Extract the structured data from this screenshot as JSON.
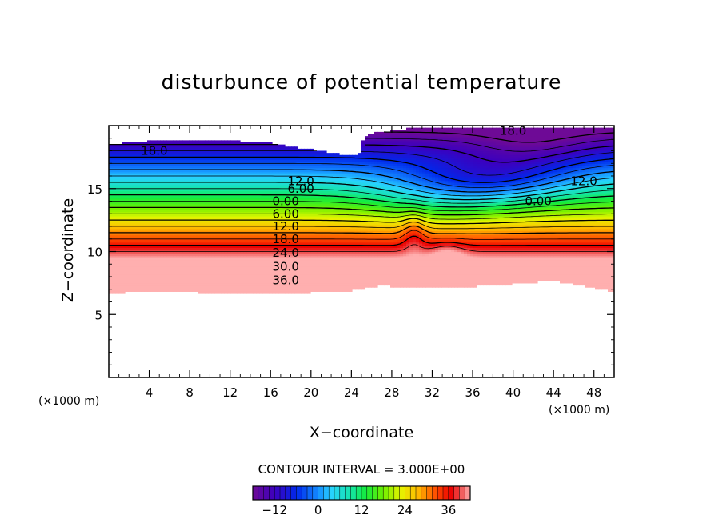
{
  "chart_data": {
    "type": "contour",
    "title": "disturbunce of potential temperature",
    "xlabel": "X−coordinate",
    "ylabel": "Z−coordinate",
    "x_unit": "(×1000 m)",
    "y_unit": "(×1000 m)",
    "xlim": [
      0,
      50
    ],
    "ylim": [
      0,
      20
    ],
    "x_ticks": [
      4,
      8,
      12,
      16,
      20,
      24,
      28,
      32,
      36,
      40,
      44,
      48
    ],
    "x_tick_labels": [
      "4",
      "8",
      "12",
      "16",
      "20",
      "24",
      "28",
      "32",
      "36",
      "40",
      "44",
      "48"
    ],
    "y_ticks": [
      5,
      10,
      15
    ],
    "y_tick_labels": [
      "5",
      "10",
      "15"
    ],
    "contour_interval_label": "CONTOUR INTERVAL = 3.000E+00",
    "contour_interval": 3,
    "negative_contours_dashed": true,
    "value_range": [
      -18,
      42
    ],
    "colorbar": {
      "ticks": [
        -12,
        0,
        12,
        24,
        36
      ],
      "tick_labels": [
        "−12",
        "0",
        "12",
        "24",
        "36"
      ],
      "range": [
        -18,
        42
      ]
    },
    "contour_labels": [
      {
        "text": "18.0",
        "x": 4.5,
        "z": 18.0
      },
      {
        "text": "12.0",
        "x": 19.0,
        "z": 15.6
      },
      {
        "text": "6.00",
        "x": 19.0,
        "z": 15.0
      },
      {
        "text": "0.00",
        "x": 17.5,
        "z": 14.0
      },
      {
        "text": "6.00",
        "x": 17.5,
        "z": 13.0
      },
      {
        "text": "12.0",
        "x": 17.5,
        "z": 12.0
      },
      {
        "text": "18.0",
        "x": 17.5,
        "z": 11.0
      },
      {
        "text": "24.0",
        "x": 17.5,
        "z": 9.9
      },
      {
        "text": "30.0",
        "x": 17.5,
        "z": 8.8
      },
      {
        "text": "36.0",
        "x": 17.5,
        "z": 7.7
      },
      {
        "text": "18.0",
        "x": 40.0,
        "z": 19.6
      },
      {
        "text": "12.0",
        "x": 47.0,
        "z": 15.6
      },
      {
        "text": "0.00",
        "x": 42.5,
        "z": 14.0
      }
    ],
    "bottom_boundary_z": [
      [
        0,
        6.7
      ],
      [
        6,
        6.9
      ],
      [
        10,
        6.7
      ],
      [
        16,
        6.6
      ],
      [
        24,
        6.9
      ],
      [
        27,
        7.3
      ],
      [
        31,
        7.1
      ],
      [
        38,
        7.3
      ],
      [
        44,
        7.7
      ],
      [
        50,
        6.8
      ]
    ],
    "top_boundary_z": [
      [
        0,
        18.5
      ],
      [
        6,
        18.9
      ],
      [
        10,
        18.9
      ],
      [
        16,
        18.6
      ],
      [
        20,
        18.1
      ],
      [
        24,
        17.6
      ],
      [
        24.9,
        17.8
      ],
      [
        25.2,
        19.0
      ],
      [
        26,
        19.4
      ],
      [
        30,
        19.8
      ],
      [
        50,
        19.8
      ]
    ]
  }
}
